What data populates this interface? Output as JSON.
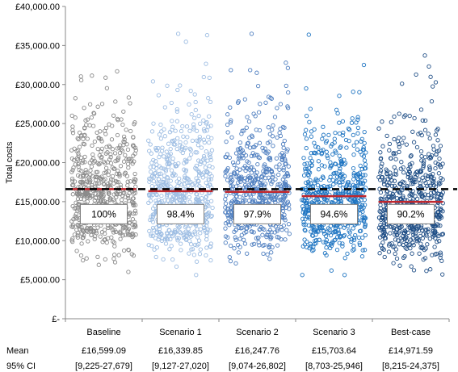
{
  "chart_data": {
    "type": "scatter",
    "ylabel": "Total costs",
    "ylim": [
      0,
      40000
    ],
    "y_ticks": [
      {
        "value": 0,
        "label": "£-"
      },
      {
        "value": 5000,
        "label": "£5,000.00"
      },
      {
        "value": 10000,
        "label": "£10,000.00"
      },
      {
        "value": 15000,
        "label": "£15,000.00"
      },
      {
        "value": 20000,
        "label": "£20,000.00"
      },
      {
        "value": 25000,
        "label": "£25,000.00"
      },
      {
        "value": 30000,
        "label": "£30,000.00"
      },
      {
        "value": 35000,
        "label": "£35,000.00"
      },
      {
        "value": 40000,
        "label": "£40,000.00"
      }
    ],
    "grid": false,
    "reference_line": {
      "value": 16599.09,
      "style": "dashed",
      "color": "#000000"
    },
    "mean_line_color": "#c0272d",
    "row_labels": {
      "mean": "Mean",
      "ci": "95% CI"
    },
    "categories": [
      "Baseline",
      "Scenario 1",
      "Scenario 2",
      "Scenario 3",
      "Best-case"
    ],
    "series": [
      {
        "category": "Baseline",
        "mean": 16599.09,
        "mean_label": "£16,599.09",
        "ci": [
          9225,
          27679
        ],
        "ci_label": "[9,225-27,679]",
        "ratio_label": "100%",
        "color": "#8a8a8a"
      },
      {
        "category": "Scenario 1",
        "mean": 16339.85,
        "mean_label": "£16,339.85",
        "ci": [
          9127,
          27020
        ],
        "ci_label": "[9,127-27,020]",
        "ratio_label": "98.4%",
        "color": "#9dbde3"
      },
      {
        "category": "Scenario 2",
        "mean": 16247.76,
        "mean_label": "£16,247.76",
        "ci": [
          9074,
          26802
        ],
        "ci_label": "[9,074-26,802]",
        "ratio_label": "97.9%",
        "color": "#4f7fc0"
      },
      {
        "category": "Scenario 3",
        "mean": 15703.64,
        "mean_label": "£15,703.64",
        "ci": [
          8703,
          25946
        ],
        "ci_label": "[8,703-25,946]",
        "ratio_label": "94.6%",
        "color": "#1f75c2"
      },
      {
        "category": "Best-case",
        "mean": 14971.59,
        "mean_label": "£14,971.59",
        "ci": [
          8215,
          24375
        ],
        "ci_label": "[8,215-24,375]",
        "ratio_label": "90.2%",
        "color": "#1f4e86"
      }
    ]
  }
}
